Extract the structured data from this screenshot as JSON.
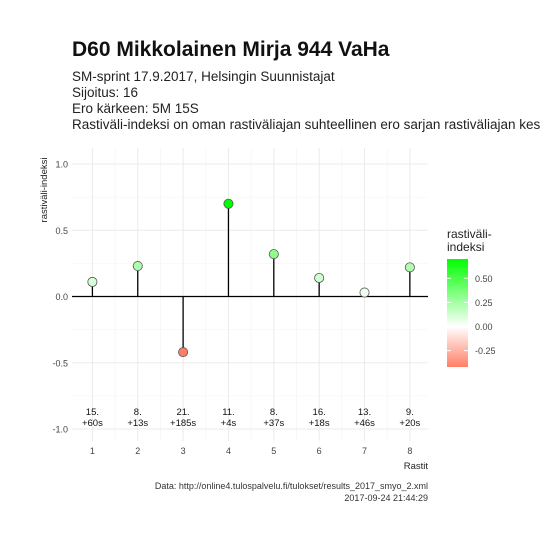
{
  "chart_data": {
    "type": "lollipop",
    "title": "D60 Mikkolainen Mirja 944 VaHa",
    "subtitle_lines": [
      "SM-sprint 17.9.2017, Helsingin Suunnistajat",
      "Sijoitus: 16",
      "Ero kärkeen: 5M 15S",
      "Rastiväli-indeksi on oman rastiväliajan suhteellinen ero sarjan rastiväliajan keskiarvoon"
    ],
    "xlabel": "Rastit",
    "ylabel": "rastiväli-indeksi",
    "x": [
      1,
      2,
      3,
      4,
      5,
      6,
      7,
      8
    ],
    "values": [
      0.11,
      0.23,
      -0.42,
      0.7,
      0.32,
      0.14,
      0.03,
      0.22
    ],
    "rank_labels": [
      "15.",
      "8.",
      "21.",
      "11.",
      "8.",
      "16.",
      "13.",
      "9."
    ],
    "time_labels": [
      "+60s",
      "+13s",
      "+185s",
      "+4s",
      "+37s",
      "+18s",
      "+46s",
      "+20s"
    ],
    "xlim": [
      0.55,
      8.4
    ],
    "ylim": [
      -1.0,
      1.0
    ],
    "y_ticks": [
      -1.0,
      -0.5,
      0.0,
      0.5,
      1.0
    ],
    "y_tick_labels": [
      "-1.0",
      "-0.5",
      "0.0",
      "0.5",
      "1.0"
    ],
    "x_tick_labels": [
      "1",
      "2",
      "3",
      "4",
      "5",
      "6",
      "7",
      "8"
    ],
    "grid": true,
    "legend": {
      "title": "rastiväli-\nindeksi",
      "placement": "right",
      "ticks": [
        0.5,
        0.25,
        0.0,
        -0.25
      ],
      "tick_labels": [
        "0.50",
        "0.25",
        "0.00",
        "-0.25"
      ],
      "range": [
        -0.42,
        0.7
      ]
    },
    "colors": {
      "high": "#00ff00",
      "mid": "#ffffff",
      "low": "#ff7f66",
      "grid": "#ebebeb",
      "line": "#000000"
    },
    "caption_lines": [
      "Data: http://online4.tulospalvelu.fi/tulokset/results_2017_smyo_2.xml",
      "2017-09-24 21:44:29"
    ]
  }
}
